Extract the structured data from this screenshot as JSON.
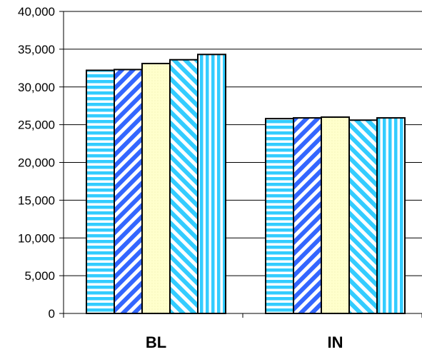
{
  "chart_data": {
    "type": "bar",
    "categories": [
      "BL",
      "IN"
    ],
    "series": [
      {
        "values": [
          32200,
          25800
        ],
        "pattern": "horizontal-stripes",
        "color": "#33ccff"
      },
      {
        "values": [
          32300,
          25900
        ],
        "pattern": "diagonal-stripes-up",
        "color": "#3366ff"
      },
      {
        "values": [
          33100,
          26000
        ],
        "pattern": "solid-light",
        "color": "#ffffcc"
      },
      {
        "values": [
          33600,
          25600
        ],
        "pattern": "diagonal-stripes-down",
        "color": "#33ccff"
      },
      {
        "values": [
          34300,
          25900
        ],
        "pattern": "vertical-stripes",
        "color": "#33ccff"
      }
    ],
    "ylim": [
      0,
      40000
    ],
    "yticks": [
      "0",
      "5,000",
      "10,000",
      "15,000",
      "20,000",
      "25,000",
      "30,000",
      "35,000",
      "40,000"
    ],
    "ytick_values": [
      0,
      5000,
      10000,
      15000,
      20000,
      25000,
      30000,
      35000,
      40000
    ],
    "grid": true,
    "title": "",
    "xlabel": "",
    "ylabel": ""
  }
}
